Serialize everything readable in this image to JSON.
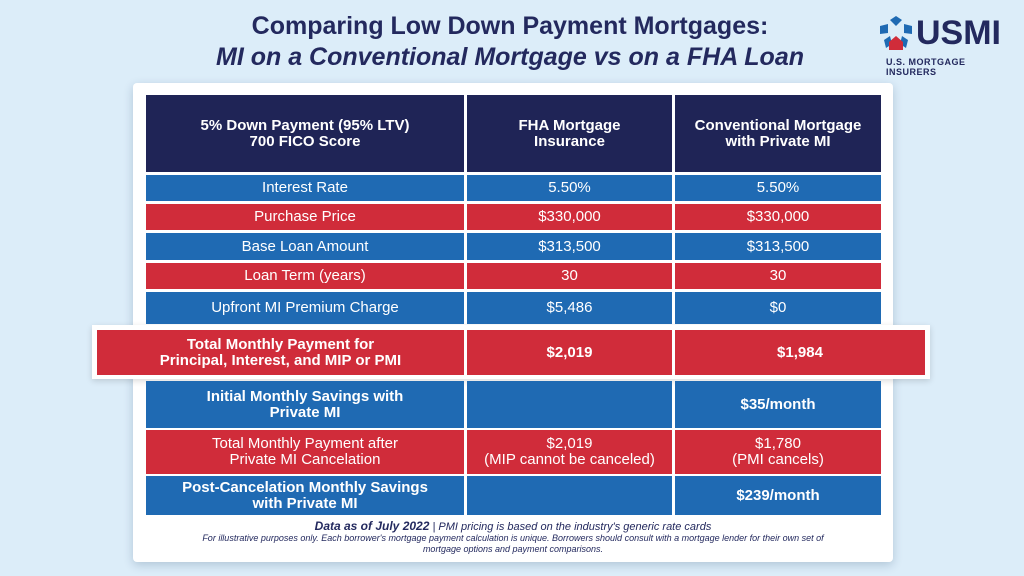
{
  "title": {
    "line1": "Comparing Low Down Payment Mortgages:",
    "line2": "MI on a Conventional Mortgage vs on a FHA Loan"
  },
  "logo": {
    "text": "USMI",
    "subtitle": "U.S. MORTGAGE INSURERS"
  },
  "colors": {
    "navy": "#1f2456",
    "blue": "#1f6ab3",
    "red": "#d02c3a",
    "background": "#dcedf9"
  },
  "table": {
    "headers": [
      "5% Down Payment (95% LTV)\n700 FICO Score",
      "FHA Mortgage\nInsurance",
      "Conventional Mortgage\nwith Private MI"
    ],
    "rows": [
      {
        "label": "Interest Rate",
        "fha": "5.50%",
        "conv": "5.50%"
      },
      {
        "label": "Purchase Price",
        "fha": "$330,000",
        "conv": "$330,000"
      },
      {
        "label": "Base Loan Amount",
        "fha": "$313,500",
        "conv": "$313,500"
      },
      {
        "label": "Loan Term (years)",
        "fha": "30",
        "conv": "30"
      },
      {
        "label": "Upfront MI Premium Charge",
        "fha": "$5,486",
        "conv": "$0"
      },
      {
        "label": "Total Monthly Payment for\nPrincipal, Interest, and MIP or PMI",
        "fha": "$2,019",
        "conv": "$1,984"
      },
      {
        "label": "Initial Monthly Savings with\nPrivate MI",
        "fha": "",
        "conv": "$35/month"
      },
      {
        "label": "Total Monthly Payment after\nPrivate MI Cancelation",
        "fha": "$2,019\n(MIP cannot be canceled)",
        "conv": "$1,780\n(PMI cancels)"
      },
      {
        "label": "Post-Cancelation Monthly Savings\nwith Private MI",
        "fha": "",
        "conv": "$239/month"
      }
    ]
  },
  "footer": {
    "line1_bold": "Data as of July 2022",
    "line1_rest": " | PMI pricing is based on the industry's generic rate cards",
    "line2": "For illustrative purposes only. Each borrower's mortgage payment calculation is unique. Borrowers should consult with a mortgage lender for their own set of mortgage options and payment comparisons."
  }
}
